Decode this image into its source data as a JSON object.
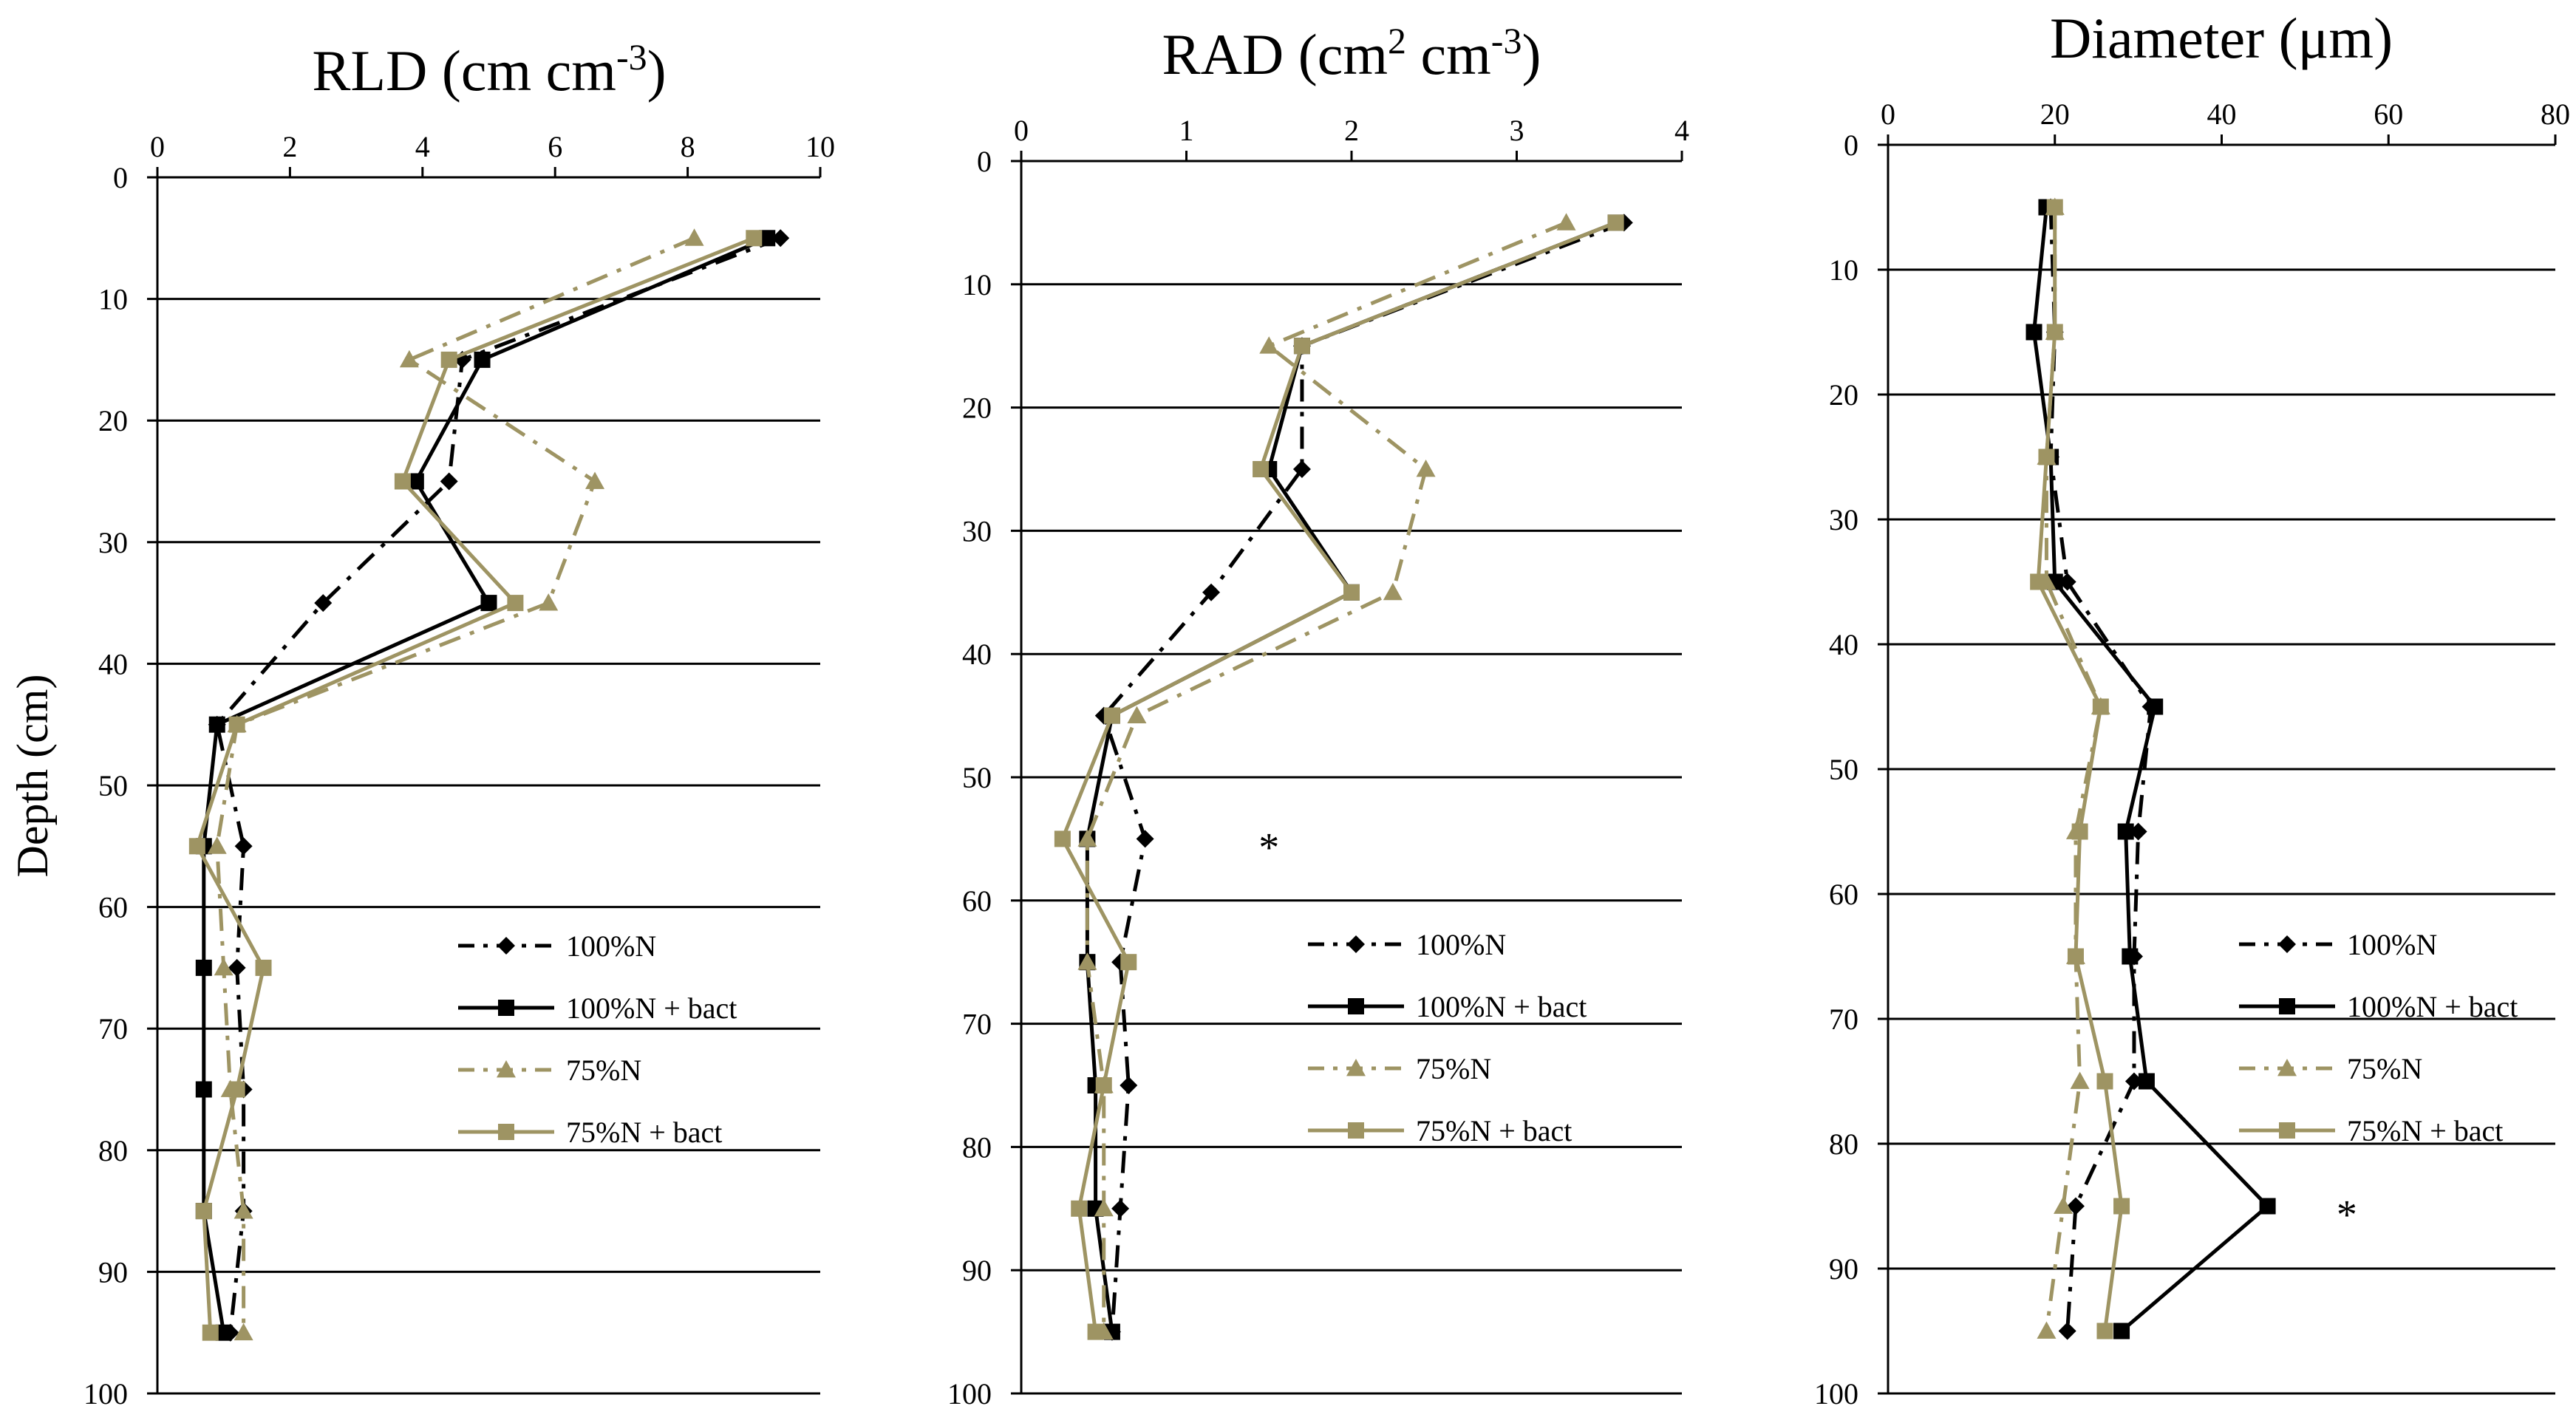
{
  "figure": {
    "ylabel": "Depth (cm)",
    "colors": {
      "black": "#000000",
      "olive": "#9E9463"
    }
  },
  "chart_data": [
    {
      "type": "line",
      "title": "RLD (cm cm-3)",
      "title_text": {
        "base": "RLD (cm cm",
        "sup": "-3",
        "end": ")"
      },
      "xlabel": "RLD (cm cm-3)",
      "ylabel": "Depth (cm)",
      "xlim": [
        0,
        10
      ],
      "xticks": [
        0,
        2,
        4,
        6,
        8,
        10
      ],
      "ylim": [
        0,
        100
      ],
      "yticks": [
        0,
        10,
        20,
        30,
        40,
        50,
        60,
        70,
        80,
        90,
        100
      ],
      "y": [
        5,
        15,
        25,
        35,
        45,
        55,
        65,
        75,
        85,
        95
      ],
      "series": [
        {
          "name": "100%N",
          "style": "dash-dot",
          "color": "#000000",
          "marker": "diamond",
          "values": [
            9.4,
            4.6,
            4.4,
            2.5,
            0.9,
            1.3,
            1.2,
            1.3,
            1.3,
            1.1
          ]
        },
        {
          "name": "100%N + bact",
          "style": "solid",
          "color": "#000000",
          "marker": "square",
          "values": [
            9.2,
            4.9,
            3.9,
            5.0,
            0.9,
            0.7,
            0.7,
            0.7,
            0.7,
            1.0
          ]
        },
        {
          "name": "75%N",
          "style": "dash-dot",
          "color": "#9E9463",
          "marker": "triangle",
          "values": [
            8.1,
            3.8,
            6.6,
            5.9,
            1.2,
            0.9,
            1.0,
            1.1,
            1.3,
            1.3
          ]
        },
        {
          "name": "75%N + bact",
          "style": "solid",
          "color": "#9E9463",
          "marker": "square",
          "values": [
            9.0,
            4.4,
            3.7,
            5.4,
            1.2,
            0.6,
            1.6,
            1.2,
            0.7,
            0.8
          ]
        }
      ],
      "legend_position": "bottom-right"
    },
    {
      "type": "line",
      "title": "RAD (cm2 cm-3)",
      "title_text": {
        "base": "RAD (cm",
        "sup": "2",
        "mid": " cm",
        "sup2": "-3",
        "end": ")"
      },
      "xlabel": "RAD (cm2 cm-3)",
      "ylabel": "Depth (cm)",
      "xlim": [
        0,
        4
      ],
      "xticks": [
        0,
        1,
        2,
        3,
        4
      ],
      "ylim": [
        0,
        100
      ],
      "yticks": [
        0,
        10,
        20,
        30,
        40,
        50,
        60,
        70,
        80,
        90,
        100
      ],
      "y": [
        5,
        15,
        25,
        35,
        45,
        55,
        65,
        75,
        85,
        95
      ],
      "series": [
        {
          "name": "100%N",
          "style": "dash-dot",
          "color": "#000000",
          "marker": "diamond",
          "values": [
            3.65,
            1.7,
            1.7,
            1.15,
            0.5,
            0.75,
            0.6,
            0.65,
            0.6,
            0.55
          ]
        },
        {
          "name": "100%N + bact",
          "style": "solid",
          "color": "#000000",
          "marker": "square",
          "values": [
            3.6,
            1.7,
            1.5,
            2.0,
            0.55,
            0.4,
            0.4,
            0.45,
            0.45,
            0.55
          ]
        },
        {
          "name": "75%N",
          "style": "dash-dot",
          "color": "#9E9463",
          "marker": "triangle",
          "values": [
            3.3,
            1.5,
            2.45,
            2.25,
            0.7,
            0.4,
            0.4,
            0.5,
            0.5,
            0.5
          ]
        },
        {
          "name": "75%N + bact",
          "style": "solid",
          "color": "#9E9463",
          "marker": "square",
          "values": [
            3.6,
            1.7,
            1.45,
            2.0,
            0.55,
            0.25,
            0.65,
            0.5,
            0.35,
            0.45
          ]
        }
      ],
      "annotation": {
        "text": "*",
        "x": 1.5,
        "y": 55
      },
      "legend_position": "bottom-right"
    },
    {
      "type": "line",
      "title": "Diameter (μm)",
      "title_text": {
        "base": "Diameter (μm)"
      },
      "xlabel": "Diameter (μm)",
      "ylabel": "Depth (cm)",
      "xlim": [
        0,
        80
      ],
      "xticks": [
        0,
        20,
        40,
        60,
        80
      ],
      "ylim": [
        0,
        100
      ],
      "yticks": [
        0,
        10,
        20,
        30,
        40,
        50,
        60,
        70,
        80,
        90,
        100
      ],
      "y": [
        5,
        15,
        25,
        35,
        45,
        55,
        65,
        75,
        85,
        95
      ],
      "series": [
        {
          "name": "100%N",
          "style": "dash-dot",
          "color": "#000000",
          "marker": "diamond",
          "values": [
            19.5,
            20,
            19.5,
            21.5,
            31.5,
            30,
            29.5,
            29.5,
            22.5,
            21.5
          ]
        },
        {
          "name": "100%N + bact",
          "style": "solid",
          "color": "#000000",
          "marker": "square",
          "values": [
            19,
            17.5,
            19.5,
            20,
            32,
            28.5,
            29,
            31,
            45.5,
            28
          ]
        },
        {
          "name": "75%N",
          "style": "dash-dot",
          "color": "#9E9463",
          "marker": "triangle",
          "values": [
            20,
            20,
            19,
            19,
            25.5,
            22.5,
            22.5,
            23,
            21,
            19
          ]
        },
        {
          "name": "75%N + bact",
          "style": "solid",
          "color": "#9E9463",
          "marker": "square",
          "values": [
            20,
            20,
            19,
            18,
            25.5,
            23,
            22.5,
            26,
            28,
            26
          ]
        }
      ],
      "annotation": {
        "text": "*",
        "x": 55,
        "y": 85
      },
      "legend_position": "bottom-right"
    }
  ]
}
